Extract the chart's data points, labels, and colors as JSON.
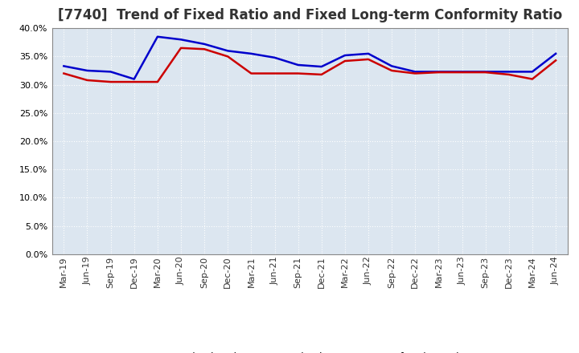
{
  "title": "[7740]  Trend of Fixed Ratio and Fixed Long-term Conformity Ratio",
  "x_labels": [
    "Mar-19",
    "Jun-19",
    "Sep-19",
    "Dec-19",
    "Mar-20",
    "Jun-20",
    "Sep-20",
    "Dec-20",
    "Mar-21",
    "Jun-21",
    "Sep-21",
    "Dec-21",
    "Mar-22",
    "Jun-22",
    "Sep-22",
    "Dec-22",
    "Mar-23",
    "Jun-23",
    "Sep-23",
    "Dec-23",
    "Mar-24",
    "Jun-24"
  ],
  "fixed_ratio": [
    0.333,
    0.325,
    0.323,
    0.31,
    0.385,
    0.38,
    0.372,
    0.36,
    0.355,
    0.348,
    0.335,
    0.332,
    0.352,
    0.355,
    0.333,
    0.323,
    0.323,
    0.323,
    0.323,
    0.323,
    0.323,
    0.355
  ],
  "fixed_lt_ratio": [
    0.32,
    0.308,
    0.305,
    0.305,
    0.305,
    0.365,
    0.363,
    0.35,
    0.32,
    0.32,
    0.32,
    0.318,
    0.342,
    0.345,
    0.325,
    0.32,
    0.322,
    0.322,
    0.322,
    0.318,
    0.31,
    0.343
  ],
  "fixed_ratio_color": "#0000cc",
  "fixed_lt_ratio_color": "#cc0000",
  "ylim": [
    0.0,
    0.4
  ],
  "yticks": [
    0.0,
    0.05,
    0.1,
    0.15,
    0.2,
    0.25,
    0.3,
    0.35,
    0.4
  ],
  "plot_bg_color": "#dce6f0",
  "fig_bg_color": "#ffffff",
  "grid_color": "#ffffff",
  "title_fontsize": 12,
  "tick_fontsize": 8,
  "legend_labels": [
    "Fixed Ratio",
    "Fixed Long-term Conformity Ratio"
  ],
  "line_width": 1.8
}
